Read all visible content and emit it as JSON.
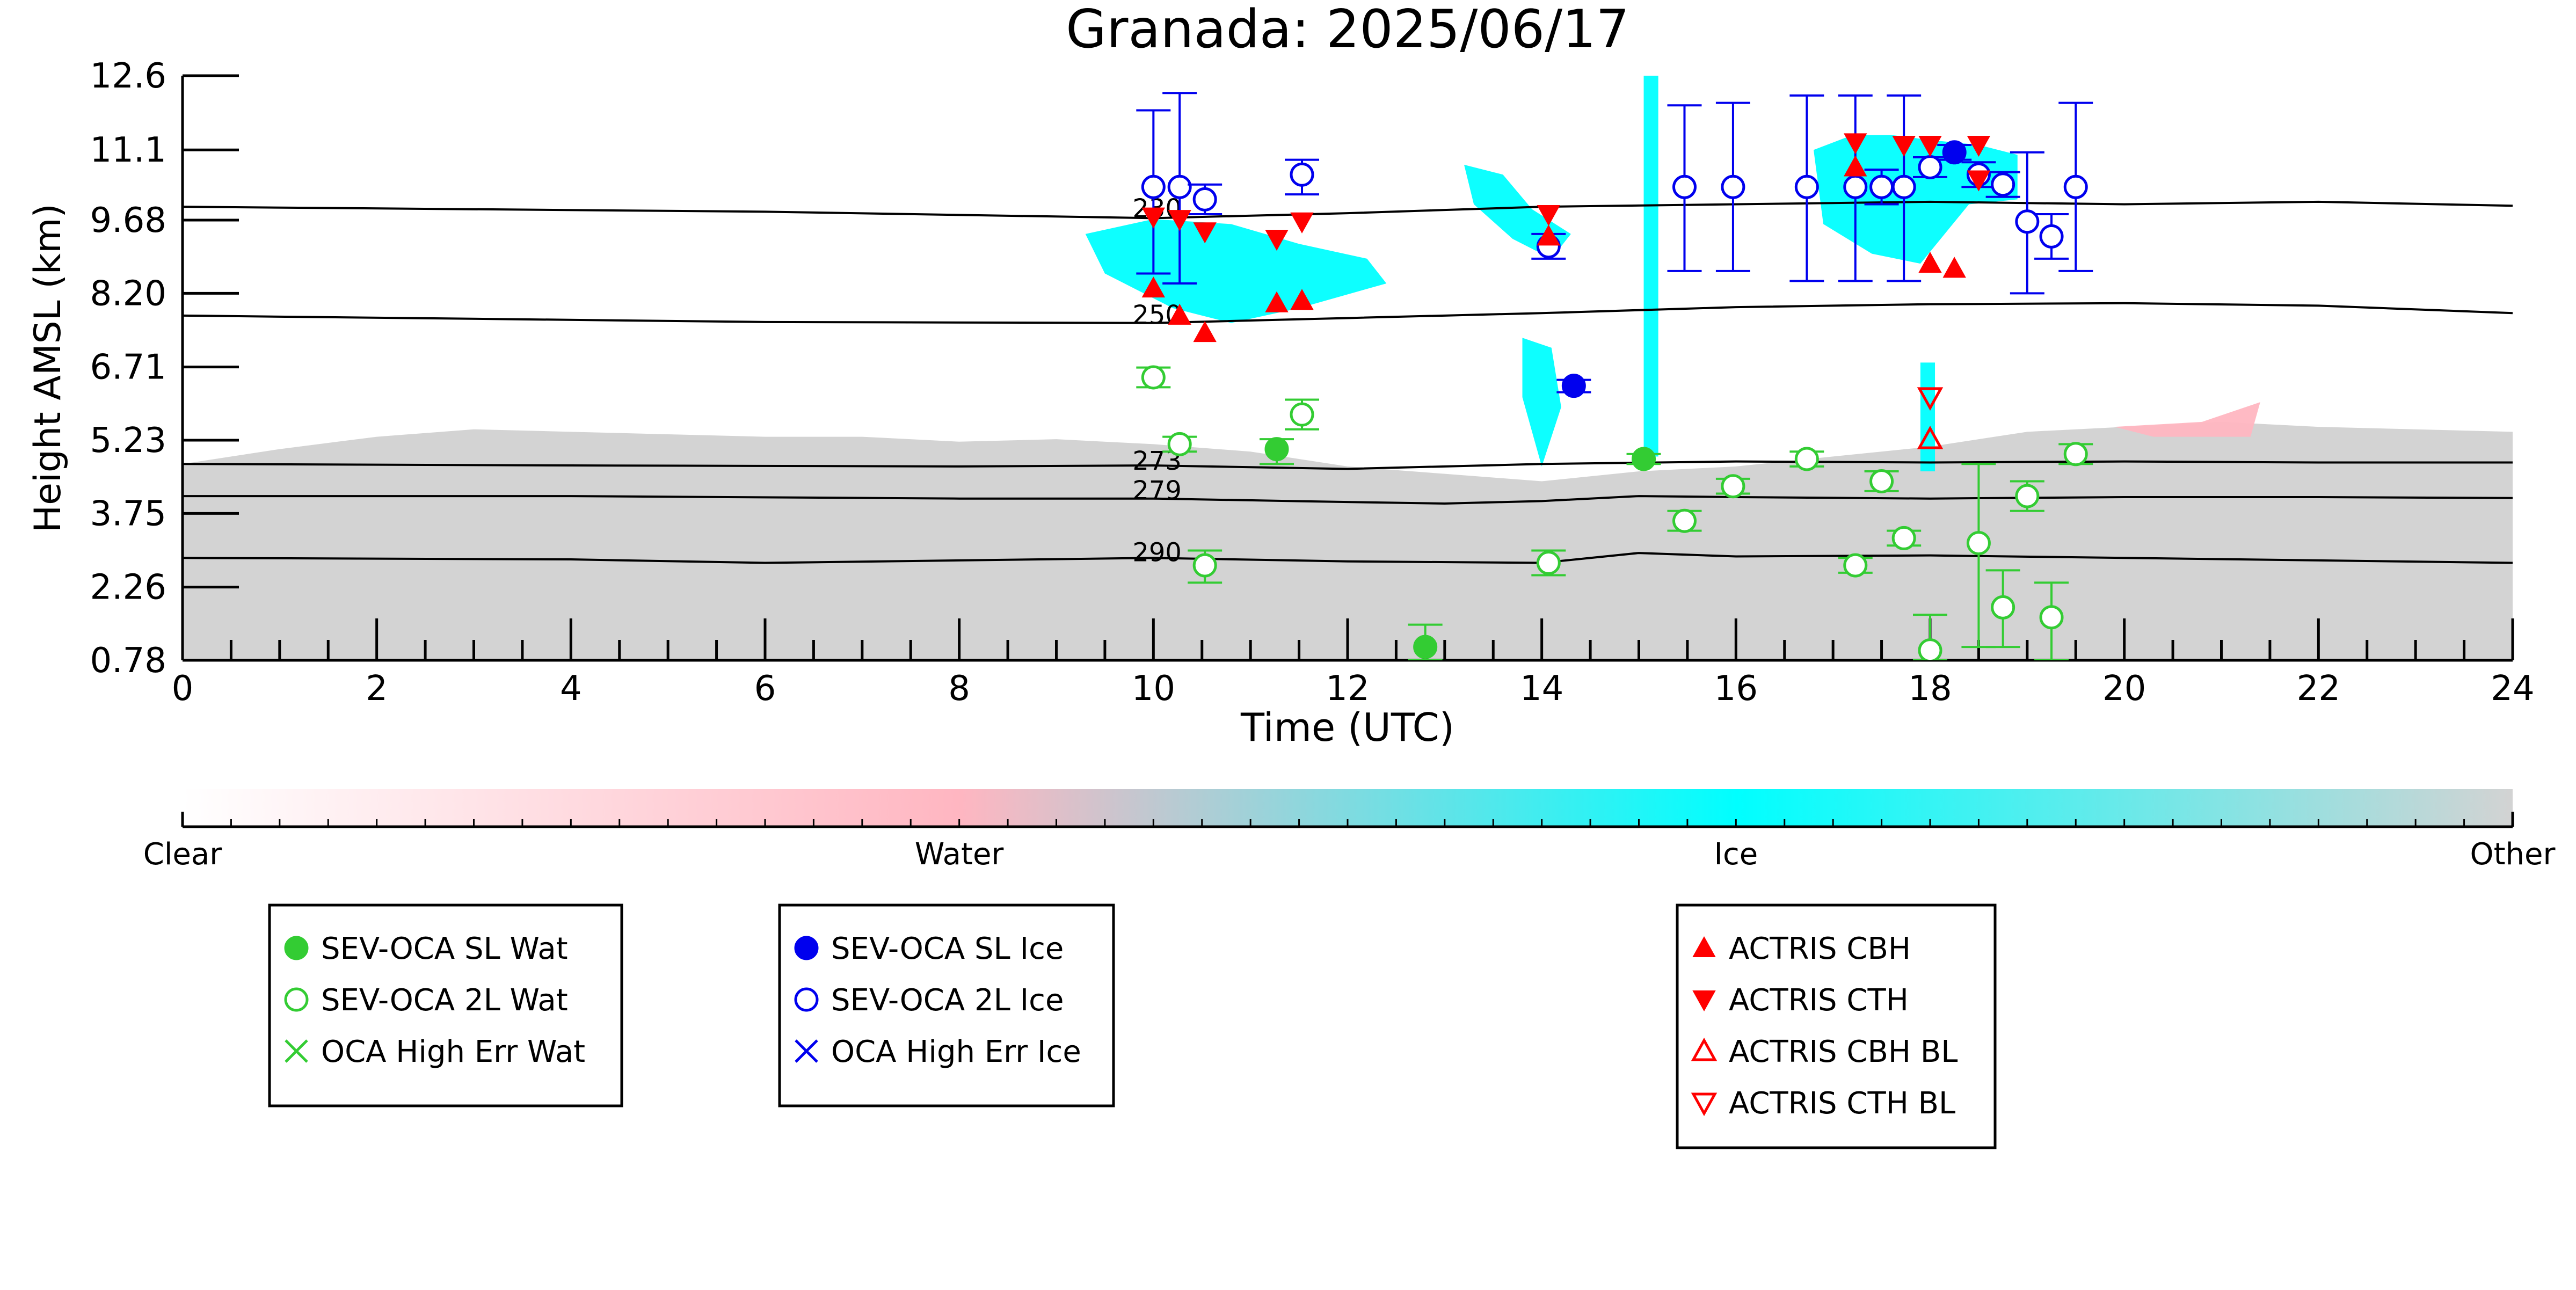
{
  "chart_data": {
    "type": "scatter",
    "title": "Granada: 2025/06/17",
    "xlabel": "Time (UTC)",
    "ylabel": "Height AMSL (km)",
    "xlim": [
      0,
      24
    ],
    "ylim": [
      0.78,
      12.6
    ],
    "xticks": [
      "0",
      "2",
      "4",
      "6",
      "8",
      "10",
      "12",
      "14",
      "16",
      "18",
      "20",
      "22",
      "24"
    ],
    "yticks": [
      {
        "label": "0.78",
        "v": 0.78
      },
      {
        "label": "2.26",
        "v": 2.26
      },
      {
        "label": "3.75",
        "v": 3.75
      },
      {
        "label": "5.23",
        "v": 5.23
      },
      {
        "label": "6.71",
        "v": 6.71
      },
      {
        "label": "8.20",
        "v": 8.2
      },
      {
        "label": "9.68",
        "v": 9.68
      },
      {
        "label": "11.1",
        "v": 11.1
      },
      {
        "label": "12.6",
        "v": 12.6
      }
    ],
    "isotherms": [
      {
        "label": "230",
        "label_x": 9.75,
        "label_y": 9.8,
        "x": [
          0,
          6,
          10,
          12,
          14,
          16,
          18,
          20,
          22,
          24
        ],
        "y": [
          9.95,
          9.85,
          9.72,
          9.82,
          9.95,
          10.0,
          10.05,
          10.0,
          10.05,
          9.97
        ]
      },
      {
        "label": "250",
        "label_x": 9.75,
        "label_y": 7.65,
        "x": [
          0,
          6,
          10,
          12,
          14,
          16,
          18,
          20,
          22,
          24
        ],
        "y": [
          7.75,
          7.62,
          7.6,
          7.7,
          7.8,
          7.92,
          7.98,
          8.0,
          7.95,
          7.8
        ]
      },
      {
        "label": "273",
        "label_x": 9.75,
        "label_y": 4.7,
        "x": [
          0,
          4,
          8,
          10,
          12,
          14,
          16,
          18,
          20,
          22,
          24
        ],
        "y": [
          4.75,
          4.72,
          4.7,
          4.72,
          4.65,
          4.75,
          4.8,
          4.78,
          4.8,
          4.78,
          4.78
        ]
      },
      {
        "label": "279",
        "label_x": 9.75,
        "label_y": 4.1,
        "x": [
          0,
          4,
          8,
          10,
          12,
          13,
          14,
          15,
          16,
          18,
          20,
          22,
          24
        ],
        "y": [
          4.1,
          4.1,
          4.05,
          4.05,
          3.98,
          3.95,
          4.0,
          4.1,
          4.08,
          4.05,
          4.08,
          4.08,
          4.06
        ]
      },
      {
        "label": "290",
        "label_x": 9.75,
        "label_y": 2.85,
        "x": [
          0,
          4,
          6,
          8,
          10,
          12,
          14,
          15,
          16,
          18,
          20,
          22,
          24
        ],
        "y": [
          2.85,
          2.82,
          2.75,
          2.8,
          2.85,
          2.78,
          2.75,
          2.95,
          2.88,
          2.9,
          2.85,
          2.8,
          2.75
        ]
      }
    ],
    "background_layers": [
      {
        "name": "Other",
        "color": "#d3d3d3",
        "x": [
          0,
          1,
          2,
          3,
          4,
          5,
          6,
          7,
          8,
          9,
          10,
          11,
          12,
          13,
          14,
          15,
          16,
          17,
          18,
          19,
          20,
          21,
          22,
          23,
          24
        ],
        "top": [
          4.75,
          5.05,
          5.3,
          5.45,
          5.4,
          5.35,
          5.3,
          5.3,
          5.2,
          5.25,
          5.15,
          5.0,
          4.7,
          4.55,
          4.4,
          4.6,
          4.7,
          4.9,
          5.1,
          5.4,
          5.5,
          5.6,
          5.5,
          5.45,
          5.4
        ]
      }
    ],
    "cloud_patches": [
      {
        "class": "Ice",
        "color": "#00ffff",
        "x": [
          9.3,
          10.0,
          10.8,
          11.5,
          12.2,
          12.4,
          11.5,
          10.8,
          10.2,
          9.5,
          9.3
        ],
        "y": [
          9.4,
          9.7,
          9.6,
          9.2,
          8.9,
          8.4,
          7.9,
          7.6,
          7.9,
          8.6,
          9.4
        ]
      },
      {
        "class": "Ice",
        "color": "#00ffff",
        "x": [
          13.2,
          13.6,
          13.9,
          14.3,
          14.1,
          13.7,
          13.3
        ],
        "y": [
          10.8,
          10.6,
          9.9,
          9.4,
          8.9,
          9.3,
          10.0
        ]
      },
      {
        "class": "Ice",
        "color": "#00ffff",
        "x": [
          13.8,
          14.1,
          14.2,
          14.0,
          13.8
        ],
        "y": [
          7.3,
          7.1,
          5.9,
          4.7,
          6.1
        ]
      },
      {
        "class": "Ice",
        "color": "#00ffff",
        "x": [
          15.05,
          15.2,
          15.2,
          15.05
        ],
        "y": [
          12.6,
          12.6,
          4.9,
          4.9
        ]
      },
      {
        "class": "Ice",
        "color": "#00ffff",
        "x": [
          16.8,
          17.2,
          17.6,
          18.0,
          18.5,
          18.9,
          18.9,
          18.4,
          17.9,
          17.4,
          16.9
        ],
        "y": [
          11.1,
          11.4,
          11.4,
          11.3,
          11.2,
          11.0,
          10.1,
          10.0,
          8.8,
          9.0,
          9.6
        ]
      },
      {
        "class": "Ice",
        "color": "#00ffff",
        "x": [
          17.9,
          18.05,
          18.05,
          17.9
        ],
        "y": [
          6.8,
          6.8,
          4.6,
          4.6
        ]
      },
      {
        "class": "Water",
        "color": "#ffb6c1",
        "x": [
          19.9,
          20.8,
          21.4,
          21.3,
          20.3,
          19.9
        ],
        "y": [
          5.5,
          5.6,
          6.0,
          5.3,
          5.3,
          5.5
        ]
      }
    ],
    "series": [
      {
        "name": "SEV-OCA SL Wat",
        "color": "#33cc33",
        "marker": "circle-filled",
        "points": [
          {
            "x": 11.27,
            "y": 5.05,
            "elo": 4.75,
            "ehi": 5.25
          },
          {
            "x": 12.8,
            "y": 1.05,
            "elo": 0.78,
            "ehi": 1.5
          },
          {
            "x": 15.05,
            "y": 4.85,
            "elo": 4.75,
            "ehi": 4.95
          }
        ]
      },
      {
        "name": "SEV-OCA 2L Wat",
        "color": "#33cc33",
        "marker": "circle-open",
        "points": [
          {
            "x": 10.0,
            "y": 6.5,
            "elo": 6.3,
            "ehi": 6.7
          },
          {
            "x": 10.27,
            "y": 5.15,
            "elo": 5.0,
            "ehi": 5.3
          },
          {
            "x": 10.53,
            "y": 2.7,
            "elo": 2.35,
            "ehi": 3.0
          },
          {
            "x": 11.53,
            "y": 5.75,
            "elo": 5.45,
            "ehi": 6.05
          },
          {
            "x": 14.07,
            "y": 2.75,
            "elo": 2.5,
            "ehi": 3.0
          },
          {
            "x": 15.47,
            "y": 3.6,
            "elo": 3.4,
            "ehi": 3.8
          },
          {
            "x": 15.97,
            "y": 4.3,
            "elo": 4.15,
            "ehi": 4.45
          },
          {
            "x": 16.73,
            "y": 4.85,
            "elo": 4.7,
            "ehi": 5.0
          },
          {
            "x": 17.23,
            "y": 2.7,
            "elo": 2.55,
            "ehi": 2.85
          },
          {
            "x": 17.5,
            "y": 4.4,
            "elo": 4.2,
            "ehi": 4.6
          },
          {
            "x": 17.73,
            "y": 3.25,
            "elo": 3.1,
            "ehi": 3.4
          },
          {
            "x": 18.0,
            "y": 0.98,
            "elo": 0.78,
            "ehi": 1.7
          },
          {
            "x": 18.5,
            "y": 3.15,
            "elo": 1.05,
            "ehi": 4.75
          },
          {
            "x": 18.75,
            "y": 1.85,
            "elo": 1.05,
            "ehi": 2.6
          },
          {
            "x": 19.0,
            "y": 4.1,
            "elo": 3.8,
            "ehi": 4.4
          },
          {
            "x": 19.25,
            "y": 1.65,
            "elo": 0.78,
            "ehi": 2.35
          },
          {
            "x": 19.5,
            "y": 4.95,
            "elo": 4.75,
            "ehi": 5.15
          }
        ]
      },
      {
        "name": "OCA High Err Wat",
        "color": "#33cc33",
        "marker": "x",
        "points": []
      },
      {
        "name": "SEV-OCA SL Ice",
        "color": "#0000ee",
        "marker": "circle-filled",
        "points": [
          {
            "x": 14.33,
            "y": 6.33,
            "elo": 6.2,
            "ehi": 6.45
          },
          {
            "x": 18.25,
            "y": 11.05,
            "elo": 10.9,
            "ehi": 11.2
          }
        ]
      },
      {
        "name": "SEV-OCA 2L Ice",
        "color": "#0000ee",
        "marker": "circle-open",
        "points": [
          {
            "x": 10.0,
            "y": 10.35,
            "elo": 8.6,
            "ehi": 11.9
          },
          {
            "x": 10.27,
            "y": 10.35,
            "elo": 8.4,
            "ehi": 12.25
          },
          {
            "x": 10.53,
            "y": 10.1,
            "elo": 9.8,
            "ehi": 10.4
          },
          {
            "x": 11.53,
            "y": 10.6,
            "elo": 10.2,
            "ehi": 10.9
          },
          {
            "x": 14.07,
            "y": 9.15,
            "elo": 8.9,
            "ehi": 9.4
          },
          {
            "x": 15.47,
            "y": 10.35,
            "elo": 8.65,
            "ehi": 12.0
          },
          {
            "x": 15.97,
            "y": 10.35,
            "elo": 8.65,
            "ehi": 12.05
          },
          {
            "x": 16.73,
            "y": 10.35,
            "elo": 8.45,
            "ehi": 12.2
          },
          {
            "x": 17.23,
            "y": 10.35,
            "elo": 8.45,
            "ehi": 12.2
          },
          {
            "x": 17.5,
            "y": 10.35,
            "elo": 10.0,
            "ehi": 10.7
          },
          {
            "x": 17.73,
            "y": 10.35,
            "elo": 8.45,
            "ehi": 12.2
          },
          {
            "x": 18.0,
            "y": 10.75,
            "elo": 10.55,
            "ehi": 10.95
          },
          {
            "x": 18.5,
            "y": 10.6,
            "elo": 10.35,
            "ehi": 10.85
          },
          {
            "x": 18.75,
            "y": 10.4,
            "elo": 10.15,
            "ehi": 10.65
          },
          {
            "x": 19.0,
            "y": 9.65,
            "elo": 8.2,
            "ehi": 11.05
          },
          {
            "x": 19.25,
            "y": 9.35,
            "elo": 8.9,
            "ehi": 9.8
          },
          {
            "x": 19.5,
            "y": 10.35,
            "elo": 8.65,
            "ehi": 12.05
          }
        ]
      },
      {
        "name": "OCA High Err Ice",
        "color": "#0000ee",
        "marker": "x",
        "points": []
      },
      {
        "name": "ACTRIS CBH",
        "color": "#ff0000",
        "marker": "triangle-up-filled",
        "points": [
          {
            "x": 10.0,
            "y": 8.3
          },
          {
            "x": 10.27,
            "y": 7.75
          },
          {
            "x": 10.53,
            "y": 7.4
          },
          {
            "x": 11.27,
            "y": 8.0
          },
          {
            "x": 11.53,
            "y": 8.05
          },
          {
            "x": 14.07,
            "y": 9.35
          },
          {
            "x": 17.23,
            "y": 10.75
          },
          {
            "x": 18.0,
            "y": 8.8
          },
          {
            "x": 18.25,
            "y": 8.7
          }
        ]
      },
      {
        "name": "ACTRIS CTH",
        "color": "#ff0000",
        "marker": "triangle-down-filled",
        "points": [
          {
            "x": 10.0,
            "y": 9.75
          },
          {
            "x": 10.27,
            "y": 9.7
          },
          {
            "x": 10.53,
            "y": 9.45
          },
          {
            "x": 11.27,
            "y": 9.3
          },
          {
            "x": 11.53,
            "y": 9.65
          },
          {
            "x": 14.07,
            "y": 9.8
          },
          {
            "x": 17.23,
            "y": 11.25
          },
          {
            "x": 17.73,
            "y": 11.2
          },
          {
            "x": 18.0,
            "y": 11.2
          },
          {
            "x": 18.5,
            "y": 11.2
          },
          {
            "x": 18.5,
            "y": 10.5
          }
        ]
      },
      {
        "name": "ACTRIS CBH BL",
        "color": "#ff0000",
        "marker": "triangle-up-open",
        "points": [
          {
            "x": 18.0,
            "y": 5.25
          }
        ]
      },
      {
        "name": "ACTRIS CTH BL",
        "color": "#ff0000",
        "marker": "triangle-down-open",
        "points": [
          {
            "x": 18.0,
            "y": 6.1
          }
        ]
      }
    ],
    "colorbar": {
      "labels": [
        "Clear",
        "Water",
        "Ice",
        "Other"
      ],
      "stops": [
        {
          "pos": 0,
          "color": "#ffffff"
        },
        {
          "pos": 0.333,
          "color": "#ffb6c1"
        },
        {
          "pos": 0.667,
          "color": "#00ffff"
        },
        {
          "pos": 1,
          "color": "#d3d3d3"
        }
      ]
    },
    "legends": [
      {
        "entries": [
          {
            "label": "SEV-OCA SL Wat",
            "color": "#33cc33",
            "marker": "circle-filled"
          },
          {
            "label": "SEV-OCA 2L Wat",
            "color": "#33cc33",
            "marker": "circle-open"
          },
          {
            "label": "OCA High Err Wat",
            "color": "#33cc33",
            "marker": "x"
          }
        ]
      },
      {
        "entries": [
          {
            "label": "SEV-OCA SL Ice",
            "color": "#0000ee",
            "marker": "circle-filled"
          },
          {
            "label": "SEV-OCA 2L Ice",
            "color": "#0000ee",
            "marker": "circle-open"
          },
          {
            "label": "OCA High Err Ice",
            "color": "#0000ee",
            "marker": "x"
          }
        ]
      },
      {
        "entries": [
          {
            "label": "ACTRIS CBH",
            "color": "#ff0000",
            "marker": "triangle-up-filled"
          },
          {
            "label": "ACTRIS CTH",
            "color": "#ff0000",
            "marker": "triangle-down-filled"
          },
          {
            "label": "ACTRIS CBH BL",
            "color": "#ff0000",
            "marker": "triangle-up-open"
          },
          {
            "label": "ACTRIS CTH BL",
            "color": "#ff0000",
            "marker": "triangle-down-open"
          }
        ]
      }
    ]
  }
}
